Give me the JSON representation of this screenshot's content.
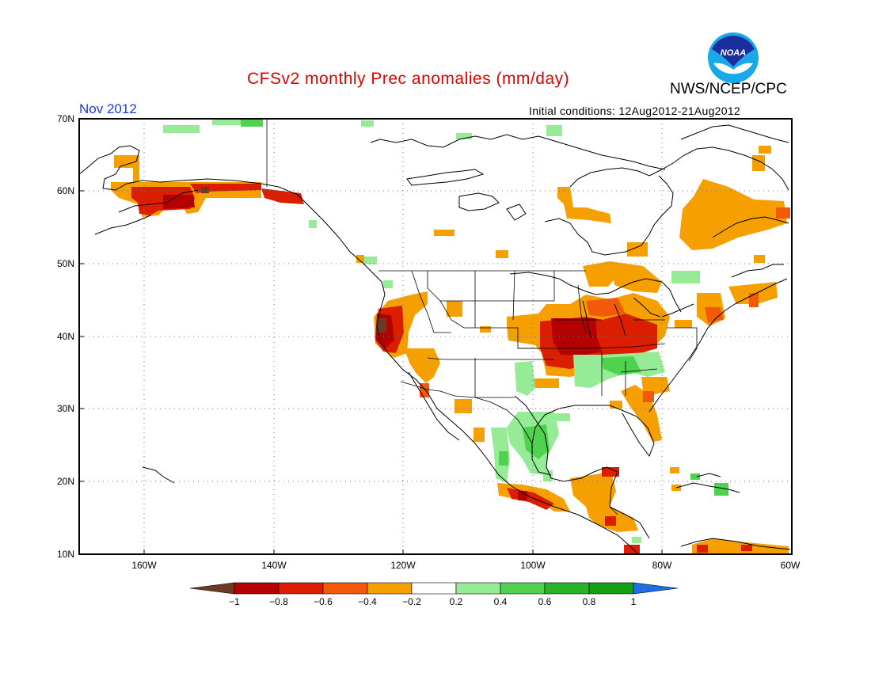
{
  "header": {
    "title": "CFSv2 monthly Prec anomalies (mm/day)",
    "period": "Nov 2012",
    "initial_conditions": "Initial conditions: 12Aug2012-21Aug2012",
    "org": "NWS/NCEP/CPC",
    "logo_text": "NOAA"
  },
  "axes": {
    "lat_labels": [
      "70N",
      "60N",
      "50N",
      "40N",
      "30N",
      "20N",
      "10N"
    ],
    "lon_labels": [
      "160W",
      "140W",
      "120W",
      "100W",
      "80W",
      "60W"
    ]
  },
  "colorbar": {
    "labels": [
      "-1",
      "-0.8",
      "-0.6",
      "-0.4",
      "-0.2",
      "0.2",
      "0.4",
      "0.6",
      "0.8",
      "1"
    ],
    "colors": [
      "#6b3a22",
      "#b40000",
      "#dc1e00",
      "#f25a0a",
      "#f5a000",
      "#ffffff",
      "#96eb96",
      "#50d250",
      "#28b428",
      "#14a014",
      "#1e6ee6"
    ]
  },
  "colors": {
    "title": "#e00000",
    "period": "#1c3bdc",
    "dry_strong": "#b40000",
    "dry_mid": "#f25a0a",
    "dry_weak": "#f5a000",
    "wet_weak": "#96eb96",
    "wet_mid": "#50d250"
  }
}
